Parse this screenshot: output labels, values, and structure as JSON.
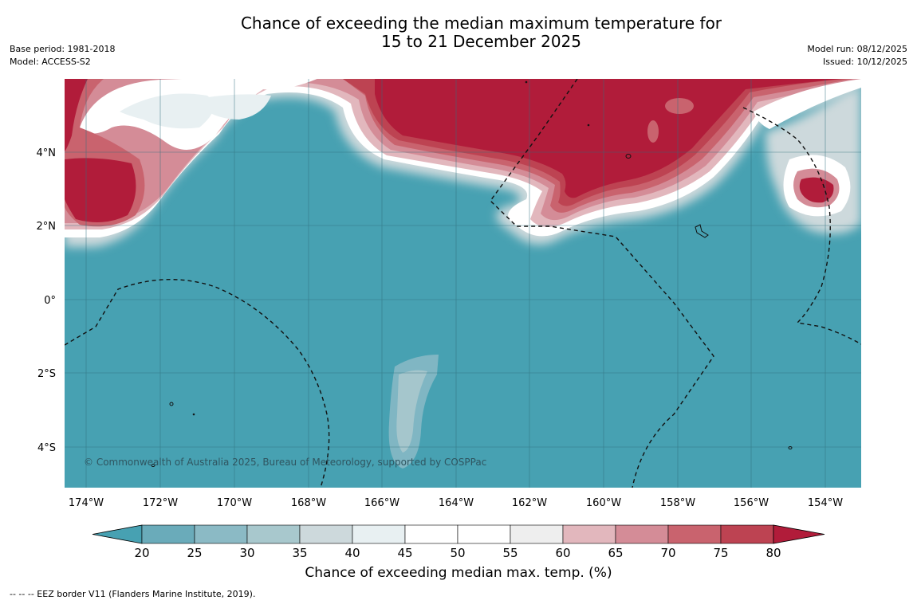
{
  "title_line1": "Chance of exceeding the median maximum temperature for",
  "title_line2": "15 to 21 December 2025",
  "base_period": "Base period: 1981-2018",
  "model": "Model: ACCESS-S2",
  "model_run": "Model run: 08/12/2025",
  "issued": "Issued: 10/12/2025",
  "copyright": "© Commonwealth of Australia 2025, Bureau of Meteorology, supported by COSPPac",
  "colorbar_label": "Chance of exceeding median max. temp. (%)",
  "footer_note": "-- -- -- EEZ border V11 (Flanders Marine Institute, 2019).",
  "lat_labels": [
    "4°N",
    "2°N",
    "0°",
    "2°S",
    "4°S"
  ],
  "lon_labels": [
    "174°W",
    "172°W",
    "170°W",
    "168°W",
    "166°W",
    "164°W",
    "162°W",
    "160°W",
    "158°W",
    "156°W",
    "154°W"
  ],
  "colorbar_ticks": [
    "20",
    "25",
    "30",
    "35",
    "40",
    "45",
    "50",
    "55",
    "60",
    "65",
    "70",
    "75",
    "80"
  ],
  "colorbar_colors": [
    "#47a1b2",
    "#6aabba",
    "#8bbac5",
    "#a8c8cd",
    "#cdd9dc",
    "#e8f0f2",
    "#ffffff",
    "#ffffff",
    "#eeeeee",
    "#e2b7bd",
    "#d48c97",
    "#c9636e",
    "#bd4352",
    "#b11c3a"
  ],
  "colors": {
    "ocean_low": "#47a1b2",
    "warm_high": "#b11c3a"
  }
}
